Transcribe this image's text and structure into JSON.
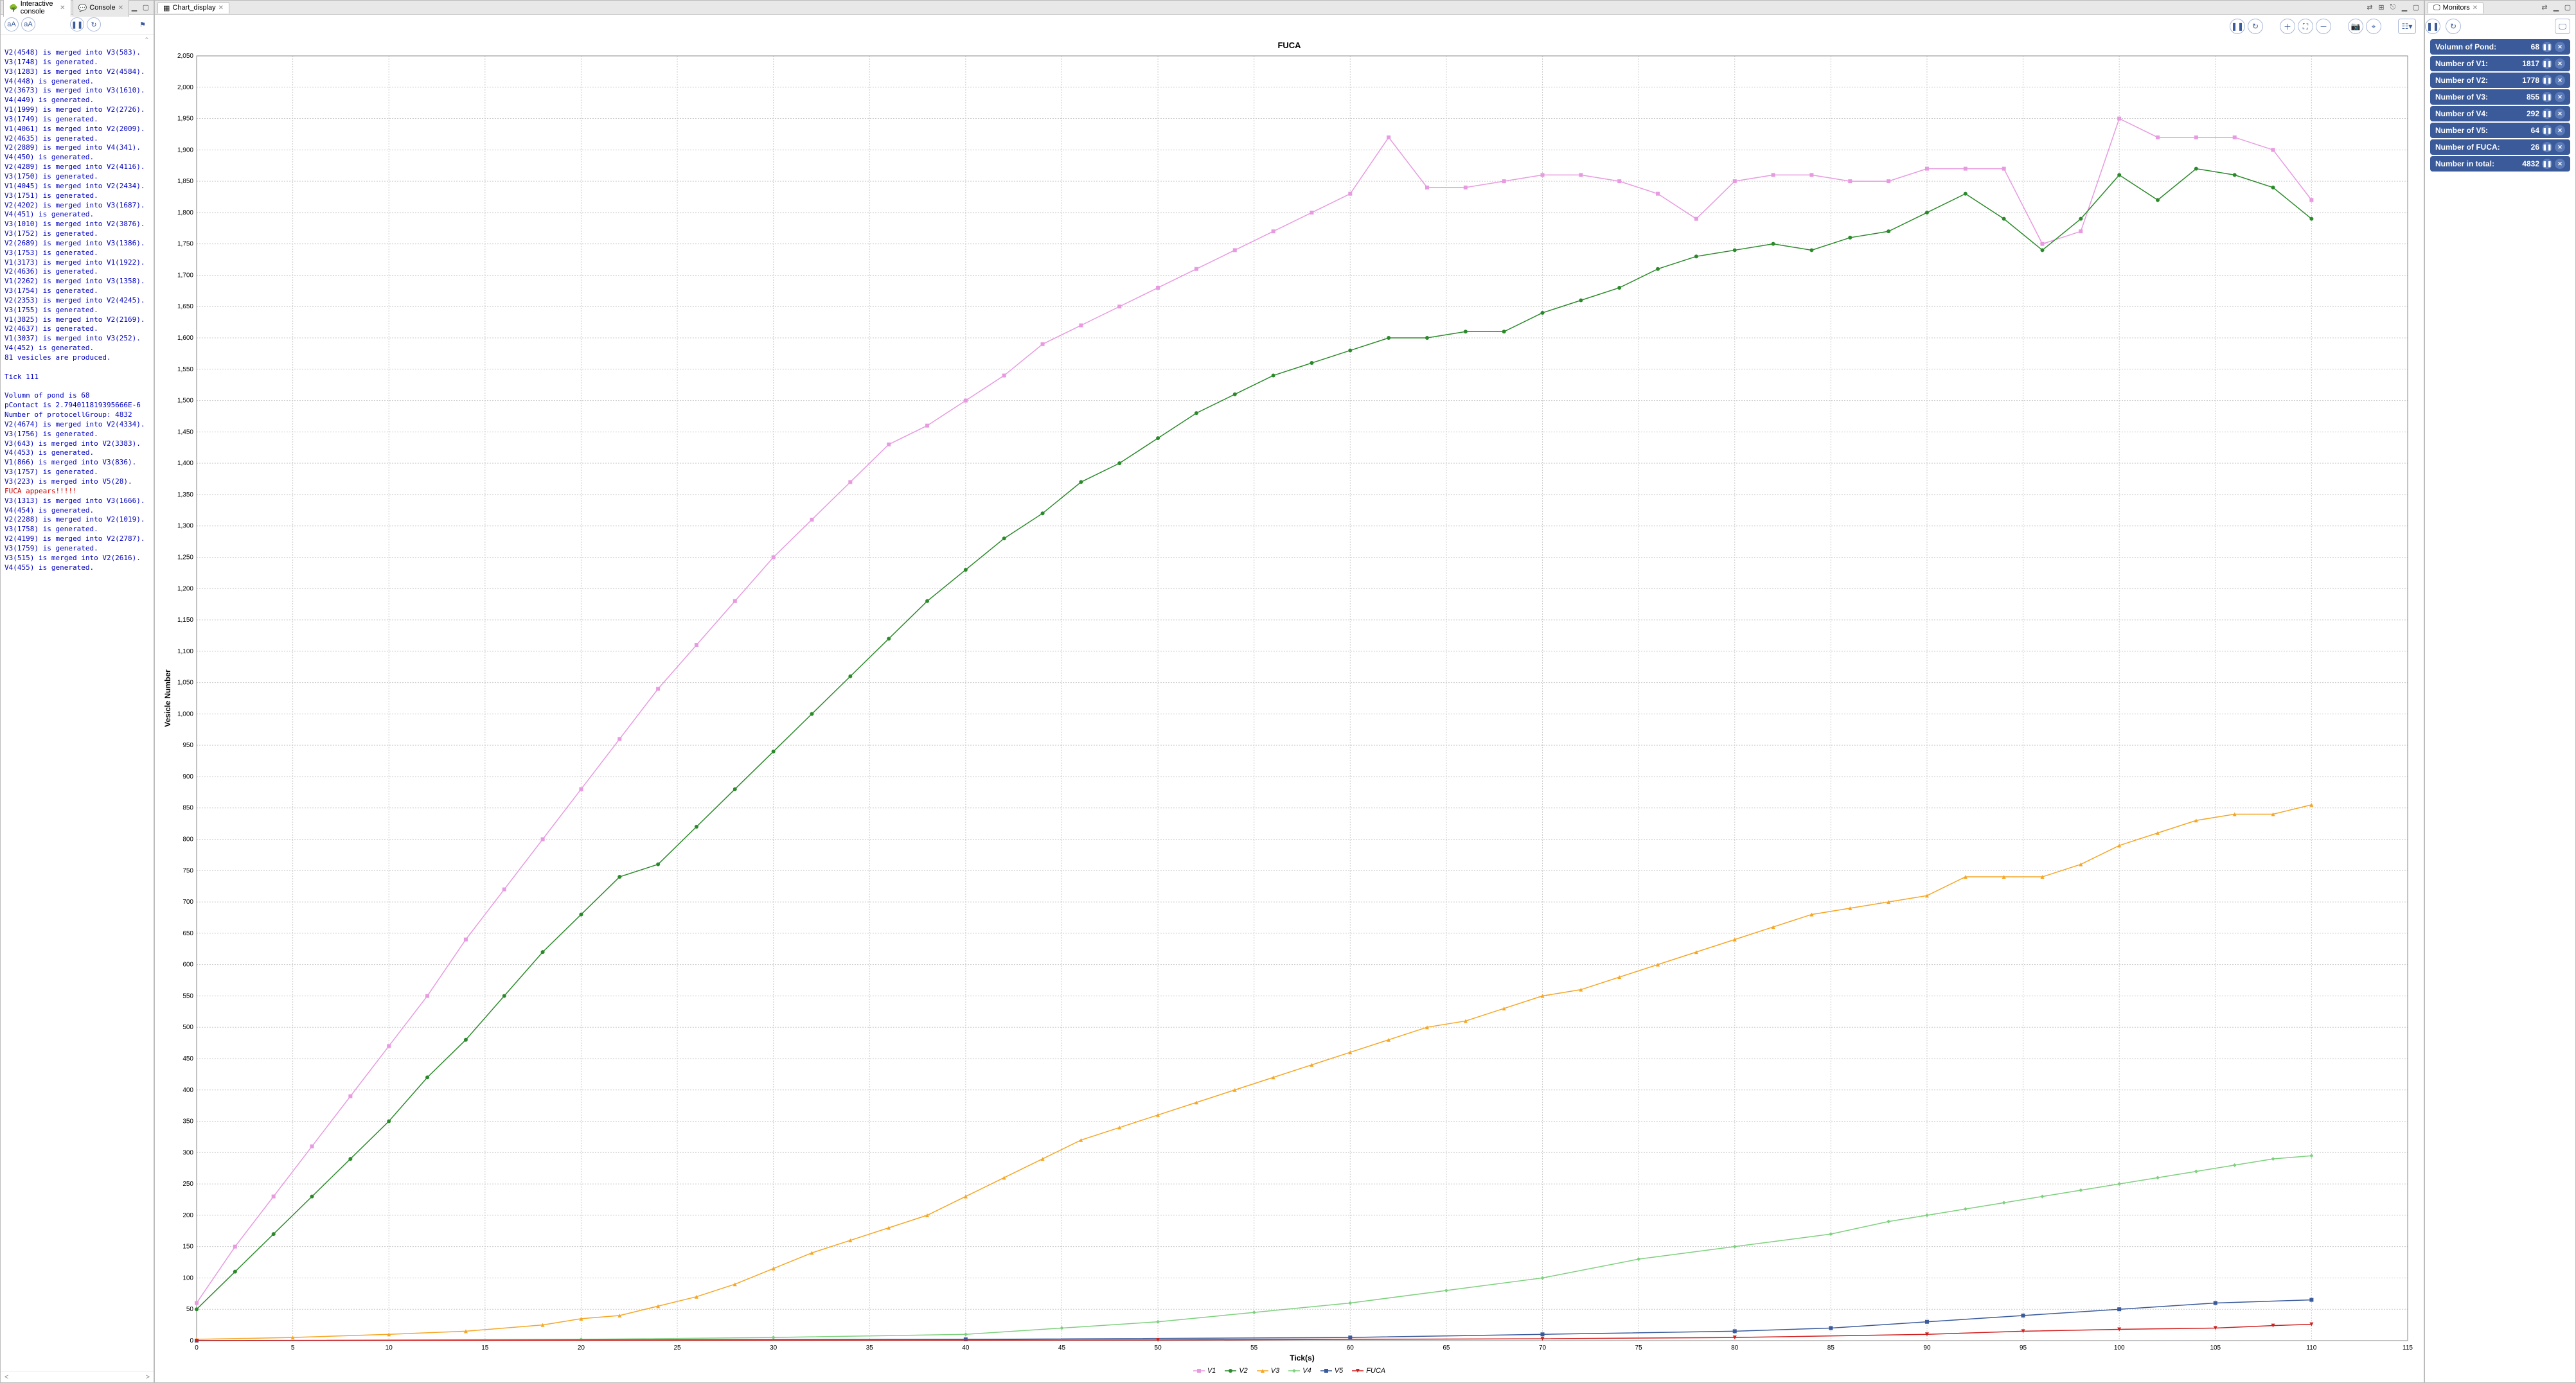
{
  "left_panel": {
    "tabs": [
      {
        "label": "Interactive console",
        "icon": "tree-icon",
        "active": true
      },
      {
        "label": "Console",
        "icon": "speech-icon",
        "active": false
      }
    ],
    "lines": [
      {
        "text": "V2(4548) is merged into V3(583).",
        "color": "blue"
      },
      {
        "text": "V3(1748) is generated.",
        "color": "blue"
      },
      {
        "text": "V3(1283) is merged into V2(4584).",
        "color": "blue"
      },
      {
        "text": "V4(448) is generated.",
        "color": "blue"
      },
      {
        "text": "V2(3673) is merged into V3(1610).",
        "color": "blue"
      },
      {
        "text": "V4(449) is generated.",
        "color": "blue"
      },
      {
        "text": "V1(1999) is merged into V2(2726).",
        "color": "blue"
      },
      {
        "text": "V3(1749) is generated.",
        "color": "blue"
      },
      {
        "text": "V1(4061) is merged into V2(2009).",
        "color": "blue"
      },
      {
        "text": "V2(4635) is generated.",
        "color": "blue"
      },
      {
        "text": "V2(2889) is merged into V4(341).",
        "color": "blue"
      },
      {
        "text": "V4(450) is generated.",
        "color": "blue"
      },
      {
        "text": "V2(4289) is merged into V2(4116).",
        "color": "blue"
      },
      {
        "text": "V3(1750) is generated.",
        "color": "blue"
      },
      {
        "text": "V1(4045) is merged into V2(2434).",
        "color": "blue"
      },
      {
        "text": "V3(1751) is generated.",
        "color": "blue"
      },
      {
        "text": "V2(4202) is merged into V3(1687).",
        "color": "blue"
      },
      {
        "text": "V4(451) is generated.",
        "color": "blue"
      },
      {
        "text": "V3(1010) is merged into V2(3876).",
        "color": "blue"
      },
      {
        "text": "V3(1752) is generated.",
        "color": "blue"
      },
      {
        "text": "V2(2689) is merged into V3(1386).",
        "color": "blue"
      },
      {
        "text": "V3(1753) is generated.",
        "color": "blue"
      },
      {
        "text": "V1(3173) is merged into V1(1922).",
        "color": "blue"
      },
      {
        "text": "V2(4636) is generated.",
        "color": "blue"
      },
      {
        "text": "V1(2262) is merged into V3(1358).",
        "color": "blue"
      },
      {
        "text": "V3(1754) is generated.",
        "color": "blue"
      },
      {
        "text": "V2(2353) is merged into V2(4245).",
        "color": "blue"
      },
      {
        "text": "V3(1755) is generated.",
        "color": "blue"
      },
      {
        "text": "V1(3825) is merged into V2(2169).",
        "color": "blue"
      },
      {
        "text": "V2(4637) is generated.",
        "color": "blue"
      },
      {
        "text": "V1(3037) is merged into V3(252).",
        "color": "blue"
      },
      {
        "text": "V4(452) is generated.",
        "color": "blue"
      },
      {
        "text": "81 vesicles are produced.",
        "color": "blue"
      },
      {
        "text": "",
        "color": "blue"
      },
      {
        "text": "Tick 111",
        "color": "blue"
      },
      {
        "text": "",
        "color": "blue"
      },
      {
        "text": "Volumn of pond is 68",
        "color": "blue"
      },
      {
        "text": "pContact is 2.794011819395666E-6",
        "color": "blue"
      },
      {
        "text": "Number of protocellGroup: 4832",
        "color": "blue"
      },
      {
        "text": "V2(4674) is merged into V2(4334).",
        "color": "blue"
      },
      {
        "text": "V3(1756) is generated.",
        "color": "blue"
      },
      {
        "text": "V3(643) is merged into V2(3383).",
        "color": "blue"
      },
      {
        "text": "V4(453) is generated.",
        "color": "blue"
      },
      {
        "text": "V1(866) is merged into V3(836).",
        "color": "blue"
      },
      {
        "text": "V3(1757) is generated.",
        "color": "blue"
      },
      {
        "text": "V3(223) is merged into V5(28).",
        "color": "blue"
      },
      {
        "text": "FUCA appears!!!!!",
        "color": "red"
      },
      {
        "text": "V3(1313) is merged into V3(1666).",
        "color": "blue"
      },
      {
        "text": "V4(454) is generated.",
        "color": "blue"
      },
      {
        "text": "V2(2288) is merged into V2(1019).",
        "color": "blue"
      },
      {
        "text": "V3(1758) is generated.",
        "color": "blue"
      },
      {
        "text": "V2(4199) is merged into V2(2787).",
        "color": "blue"
      },
      {
        "text": "V3(1759) is generated.",
        "color": "blue"
      },
      {
        "text": "V3(515) is merged into V2(2616).",
        "color": "blue"
      },
      {
        "text": "V4(455) is generated.",
        "color": "blue"
      }
    ]
  },
  "chart": {
    "tab_label": "Chart_display",
    "title": "FUCA",
    "xlabel": "Tick(s)",
    "ylabel": "Vesicle Number",
    "xlim": [
      0,
      115
    ],
    "xtick_step": 5,
    "ylim": [
      0,
      2050
    ],
    "ytick_step": 50,
    "background_color": "#ffffff",
    "grid_color": "#cccccc",
    "series": [
      {
        "name": "V1",
        "color": "#e89ae0",
        "marker": "square",
        "data": [
          [
            0,
            60
          ],
          [
            2,
            150
          ],
          [
            4,
            230
          ],
          [
            6,
            310
          ],
          [
            8,
            390
          ],
          [
            10,
            470
          ],
          [
            12,
            550
          ],
          [
            14,
            640
          ],
          [
            16,
            720
          ],
          [
            18,
            800
          ],
          [
            20,
            880
          ],
          [
            22,
            960
          ],
          [
            24,
            1040
          ],
          [
            26,
            1110
          ],
          [
            28,
            1180
          ],
          [
            30,
            1250
          ],
          [
            32,
            1310
          ],
          [
            34,
            1370
          ],
          [
            36,
            1430
          ],
          [
            38,
            1460
          ],
          [
            40,
            1500
          ],
          [
            42,
            1540
          ],
          [
            44,
            1590
          ],
          [
            46,
            1620
          ],
          [
            48,
            1650
          ],
          [
            50,
            1680
          ],
          [
            52,
            1710
          ],
          [
            54,
            1740
          ],
          [
            56,
            1770
          ],
          [
            58,
            1800
          ],
          [
            60,
            1830
          ],
          [
            62,
            1920
          ],
          [
            64,
            1840
          ],
          [
            66,
            1840
          ],
          [
            68,
            1850
          ],
          [
            70,
            1860
          ],
          [
            72,
            1860
          ],
          [
            74,
            1850
          ],
          [
            76,
            1830
          ],
          [
            78,
            1790
          ],
          [
            80,
            1850
          ],
          [
            82,
            1860
          ],
          [
            84,
            1860
          ],
          [
            86,
            1850
          ],
          [
            88,
            1850
          ],
          [
            90,
            1870
          ],
          [
            92,
            1870
          ],
          [
            94,
            1870
          ],
          [
            96,
            1750
          ],
          [
            98,
            1770
          ],
          [
            100,
            1950
          ],
          [
            102,
            1920
          ],
          [
            104,
            1920
          ],
          [
            106,
            1920
          ],
          [
            108,
            1900
          ],
          [
            110,
            1820
          ]
        ]
      },
      {
        "name": "V2",
        "color": "#2a8a2a",
        "marker": "circle",
        "data": [
          [
            0,
            50
          ],
          [
            2,
            110
          ],
          [
            4,
            170
          ],
          [
            6,
            230
          ],
          [
            8,
            290
          ],
          [
            10,
            350
          ],
          [
            12,
            420
          ],
          [
            14,
            480
          ],
          [
            16,
            550
          ],
          [
            18,
            620
          ],
          [
            20,
            680
          ],
          [
            22,
            740
          ],
          [
            24,
            760
          ],
          [
            26,
            820
          ],
          [
            28,
            880
          ],
          [
            30,
            940
          ],
          [
            32,
            1000
          ],
          [
            34,
            1060
          ],
          [
            36,
            1120
          ],
          [
            38,
            1180
          ],
          [
            40,
            1230
          ],
          [
            42,
            1280
          ],
          [
            44,
            1320
          ],
          [
            46,
            1370
          ],
          [
            48,
            1400
          ],
          [
            50,
            1440
          ],
          [
            52,
            1480
          ],
          [
            54,
            1510
          ],
          [
            56,
            1540
          ],
          [
            58,
            1560
          ],
          [
            60,
            1580
          ],
          [
            62,
            1600
          ],
          [
            64,
            1600
          ],
          [
            66,
            1610
          ],
          [
            68,
            1610
          ],
          [
            70,
            1640
          ],
          [
            72,
            1660
          ],
          [
            74,
            1680
          ],
          [
            76,
            1710
          ],
          [
            78,
            1730
          ],
          [
            80,
            1740
          ],
          [
            82,
            1750
          ],
          [
            84,
            1740
          ],
          [
            86,
            1760
          ],
          [
            88,
            1770
          ],
          [
            90,
            1800
          ],
          [
            92,
            1830
          ],
          [
            94,
            1790
          ],
          [
            96,
            1740
          ],
          [
            98,
            1790
          ],
          [
            100,
            1860
          ],
          [
            102,
            1820
          ],
          [
            104,
            1870
          ],
          [
            106,
            1860
          ],
          [
            108,
            1840
          ],
          [
            110,
            1790
          ]
        ]
      },
      {
        "name": "V3",
        "color": "#f5a623",
        "marker": "triangle",
        "data": [
          [
            0,
            2
          ],
          [
            5,
            5
          ],
          [
            10,
            10
          ],
          [
            14,
            15
          ],
          [
            18,
            25
          ],
          [
            20,
            35
          ],
          [
            22,
            40
          ],
          [
            24,
            55
          ],
          [
            26,
            70
          ],
          [
            28,
            90
          ],
          [
            30,
            115
          ],
          [
            32,
            140
          ],
          [
            34,
            160
          ],
          [
            36,
            180
          ],
          [
            38,
            200
          ],
          [
            40,
            230
          ],
          [
            42,
            260
          ],
          [
            44,
            290
          ],
          [
            46,
            320
          ],
          [
            48,
            340
          ],
          [
            50,
            360
          ],
          [
            52,
            380
          ],
          [
            54,
            400
          ],
          [
            56,
            420
          ],
          [
            58,
            440
          ],
          [
            60,
            460
          ],
          [
            62,
            480
          ],
          [
            64,
            500
          ],
          [
            66,
            510
          ],
          [
            68,
            530
          ],
          [
            70,
            550
          ],
          [
            72,
            560
          ],
          [
            74,
            580
          ],
          [
            76,
            600
          ],
          [
            78,
            620
          ],
          [
            80,
            640
          ],
          [
            82,
            660
          ],
          [
            84,
            680
          ],
          [
            86,
            690
          ],
          [
            88,
            700
          ],
          [
            90,
            710
          ],
          [
            92,
            740
          ],
          [
            94,
            740
          ],
          [
            96,
            740
          ],
          [
            98,
            760
          ],
          [
            100,
            790
          ],
          [
            102,
            810
          ],
          [
            104,
            830
          ],
          [
            106,
            840
          ],
          [
            108,
            840
          ],
          [
            110,
            855
          ]
        ]
      },
      {
        "name": "V4",
        "color": "#7ed07e",
        "marker": "diamond",
        "data": [
          [
            0,
            0
          ],
          [
            20,
            2
          ],
          [
            30,
            5
          ],
          [
            40,
            10
          ],
          [
            45,
            20
          ],
          [
            50,
            30
          ],
          [
            55,
            45
          ],
          [
            60,
            60
          ],
          [
            65,
            80
          ],
          [
            70,
            100
          ],
          [
            75,
            130
          ],
          [
            80,
            150
          ],
          [
            85,
            170
          ],
          [
            88,
            190
          ],
          [
            90,
            200
          ],
          [
            92,
            210
          ],
          [
            94,
            220
          ],
          [
            96,
            230
          ],
          [
            98,
            240
          ],
          [
            100,
            250
          ],
          [
            102,
            260
          ],
          [
            104,
            270
          ],
          [
            106,
            280
          ],
          [
            108,
            290
          ],
          [
            110,
            295
          ]
        ]
      },
      {
        "name": "V5",
        "color": "#3a5a9a",
        "marker": "square",
        "data": [
          [
            0,
            0
          ],
          [
            40,
            2
          ],
          [
            60,
            5
          ],
          [
            70,
            10
          ],
          [
            80,
            15
          ],
          [
            85,
            20
          ],
          [
            90,
            30
          ],
          [
            95,
            40
          ],
          [
            100,
            50
          ],
          [
            105,
            60
          ],
          [
            110,
            65
          ]
        ]
      },
      {
        "name": "FUCA",
        "color": "#d02020",
        "marker": "triangle-down",
        "data": [
          [
            0,
            0
          ],
          [
            50,
            1
          ],
          [
            70,
            3
          ],
          [
            80,
            5
          ],
          [
            90,
            10
          ],
          [
            95,
            15
          ],
          [
            100,
            18
          ],
          [
            105,
            20
          ],
          [
            108,
            24
          ],
          [
            110,
            26
          ]
        ]
      }
    ]
  },
  "monitors": {
    "tab_label": "Monitors",
    "items": [
      {
        "label": "Volumn of Pond:",
        "value": "68"
      },
      {
        "label": "Number of V1:",
        "value": "1817"
      },
      {
        "label": "Number of V2:",
        "value": "1778"
      },
      {
        "label": "Number of V3:",
        "value": "855"
      },
      {
        "label": "Number of V4:",
        "value": "292"
      },
      {
        "label": "Number of V5:",
        "value": "64"
      },
      {
        "label": "Number of FUCA:",
        "value": "26"
      },
      {
        "label": "Number in total:",
        "value": "4832"
      }
    ]
  }
}
